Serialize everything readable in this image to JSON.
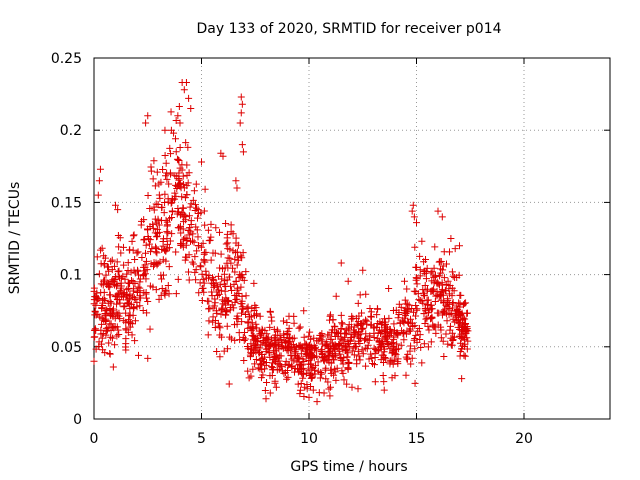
{
  "chart_data": {
    "type": "scatter",
    "title": "Day 133 of 2020, SRMTID for receiver p014",
    "xlabel": "GPS time / hours",
    "ylabel": "SRMTID / TECUs",
    "xlim": [
      0,
      24
    ],
    "ylim": [
      0,
      0.25
    ],
    "x_ticks": [
      0,
      5,
      10,
      15,
      20
    ],
    "x_tick_labels": [
      "0",
      "5",
      "10",
      "15",
      "20"
    ],
    "y_ticks": [
      0,
      0.05,
      0.1,
      0.15,
      0.2,
      0.25
    ],
    "y_tick_labels": [
      "0",
      "0.05",
      "0.1",
      "0.15",
      "0.2",
      "0.25"
    ],
    "grid": true,
    "marker": "+",
    "marker_color": "#dd0000",
    "series_profile": [
      {
        "x": 0.0,
        "y": 0.07,
        "spread": 0.025
      },
      {
        "x": 0.5,
        "y": 0.08,
        "spread": 0.03
      },
      {
        "x": 1.0,
        "y": 0.085,
        "spread": 0.03
      },
      {
        "x": 1.5,
        "y": 0.085,
        "spread": 0.03
      },
      {
        "x": 2.0,
        "y": 0.09,
        "spread": 0.035
      },
      {
        "x": 2.5,
        "y": 0.11,
        "spread": 0.04
      },
      {
        "x": 3.0,
        "y": 0.125,
        "spread": 0.045
      },
      {
        "x": 3.5,
        "y": 0.14,
        "spread": 0.05
      },
      {
        "x": 4.0,
        "y": 0.155,
        "spread": 0.05
      },
      {
        "x": 4.5,
        "y": 0.135,
        "spread": 0.045
      },
      {
        "x": 5.0,
        "y": 0.11,
        "spread": 0.035
      },
      {
        "x": 5.5,
        "y": 0.095,
        "spread": 0.04
      },
      {
        "x": 6.0,
        "y": 0.09,
        "spread": 0.04
      },
      {
        "x": 6.5,
        "y": 0.1,
        "spread": 0.045
      },
      {
        "x": 7.0,
        "y": 0.07,
        "spread": 0.03
      },
      {
        "x": 7.5,
        "y": 0.05,
        "spread": 0.025
      },
      {
        "x": 8.0,
        "y": 0.045,
        "spread": 0.02
      },
      {
        "x": 8.5,
        "y": 0.045,
        "spread": 0.02
      },
      {
        "x": 9.0,
        "y": 0.05,
        "spread": 0.02
      },
      {
        "x": 9.5,
        "y": 0.045,
        "spread": 0.02
      },
      {
        "x": 10.0,
        "y": 0.04,
        "spread": 0.02
      },
      {
        "x": 10.5,
        "y": 0.045,
        "spread": 0.02
      },
      {
        "x": 11.0,
        "y": 0.048,
        "spread": 0.02
      },
      {
        "x": 11.5,
        "y": 0.05,
        "spread": 0.022
      },
      {
        "x": 12.0,
        "y": 0.055,
        "spread": 0.022
      },
      {
        "x": 12.5,
        "y": 0.058,
        "spread": 0.022
      },
      {
        "x": 13.0,
        "y": 0.055,
        "spread": 0.02
      },
      {
        "x": 13.5,
        "y": 0.055,
        "spread": 0.02
      },
      {
        "x": 14.0,
        "y": 0.052,
        "spread": 0.02
      },
      {
        "x": 14.5,
        "y": 0.065,
        "spread": 0.03
      },
      {
        "x": 15.0,
        "y": 0.08,
        "spread": 0.035
      },
      {
        "x": 15.5,
        "y": 0.085,
        "spread": 0.03
      },
      {
        "x": 16.0,
        "y": 0.085,
        "spread": 0.03
      },
      {
        "x": 16.5,
        "y": 0.08,
        "spread": 0.03
      },
      {
        "x": 17.0,
        "y": 0.065,
        "spread": 0.02
      },
      {
        "x": 17.3,
        "y": 0.06,
        "spread": 0.015
      }
    ],
    "x_end": 17.4,
    "point_count": 1700,
    "random_seed": 133,
    "outliers": [
      {
        "x": 4.1,
        "y": 0.233
      },
      {
        "x": 4.3,
        "y": 0.233
      },
      {
        "x": 4.2,
        "y": 0.228
      },
      {
        "x": 4.5,
        "y": 0.215
      },
      {
        "x": 4.4,
        "y": 0.222
      },
      {
        "x": 3.9,
        "y": 0.21
      },
      {
        "x": 4.0,
        "y": 0.205
      },
      {
        "x": 3.7,
        "y": 0.198
      },
      {
        "x": 3.6,
        "y": 0.2
      },
      {
        "x": 2.5,
        "y": 0.21
      },
      {
        "x": 2.4,
        "y": 0.205
      },
      {
        "x": 3.3,
        "y": 0.2
      },
      {
        "x": 6.85,
        "y": 0.223
      },
      {
        "x": 6.9,
        "y": 0.218
      },
      {
        "x": 6.85,
        "y": 0.212
      },
      {
        "x": 6.8,
        "y": 0.205
      },
      {
        "x": 6.9,
        "y": 0.19
      },
      {
        "x": 6.95,
        "y": 0.185
      },
      {
        "x": 5.9,
        "y": 0.184
      },
      {
        "x": 6.0,
        "y": 0.182
      },
      {
        "x": 5.0,
        "y": 0.178
      },
      {
        "x": 6.6,
        "y": 0.165
      },
      {
        "x": 6.65,
        "y": 0.16
      },
      {
        "x": 0.3,
        "y": 0.173
      },
      {
        "x": 0.25,
        "y": 0.165
      },
      {
        "x": 0.2,
        "y": 0.155
      },
      {
        "x": 1.0,
        "y": 0.148
      },
      {
        "x": 1.1,
        "y": 0.145
      },
      {
        "x": 14.85,
        "y": 0.148
      },
      {
        "x": 14.8,
        "y": 0.144
      },
      {
        "x": 14.9,
        "y": 0.14
      },
      {
        "x": 15.0,
        "y": 0.136
      },
      {
        "x": 16.0,
        "y": 0.144
      },
      {
        "x": 16.2,
        "y": 0.14
      },
      {
        "x": 11.5,
        "y": 0.108
      },
      {
        "x": 12.5,
        "y": 0.103
      },
      {
        "x": 16.6,
        "y": 0.125
      },
      {
        "x": 17.0,
        "y": 0.12
      },
      {
        "x": 16.8,
        "y": 0.118
      },
      {
        "x": 8.0,
        "y": 0.014
      },
      {
        "x": 8.2,
        "y": 0.018
      },
      {
        "x": 10.0,
        "y": 0.015
      },
      {
        "x": 10.2,
        "y": 0.02
      },
      {
        "x": 10.7,
        "y": 0.018
      },
      {
        "x": 9.8,
        "y": 0.022
      },
      {
        "x": 13.5,
        "y": 0.02
      },
      {
        "x": 12.0,
        "y": 0.022
      },
      {
        "x": 11.0,
        "y": 0.022
      },
      {
        "x": 14.0,
        "y": 0.03
      },
      {
        "x": 17.1,
        "y": 0.028
      },
      {
        "x": 0.0,
        "y": 0.04
      },
      {
        "x": 0.9,
        "y": 0.036
      },
      {
        "x": 2.5,
        "y": 0.042
      },
      {
        "x": 0.5,
        "y": 0.046
      },
      {
        "x": 0.4,
        "y": 0.048
      }
    ]
  }
}
